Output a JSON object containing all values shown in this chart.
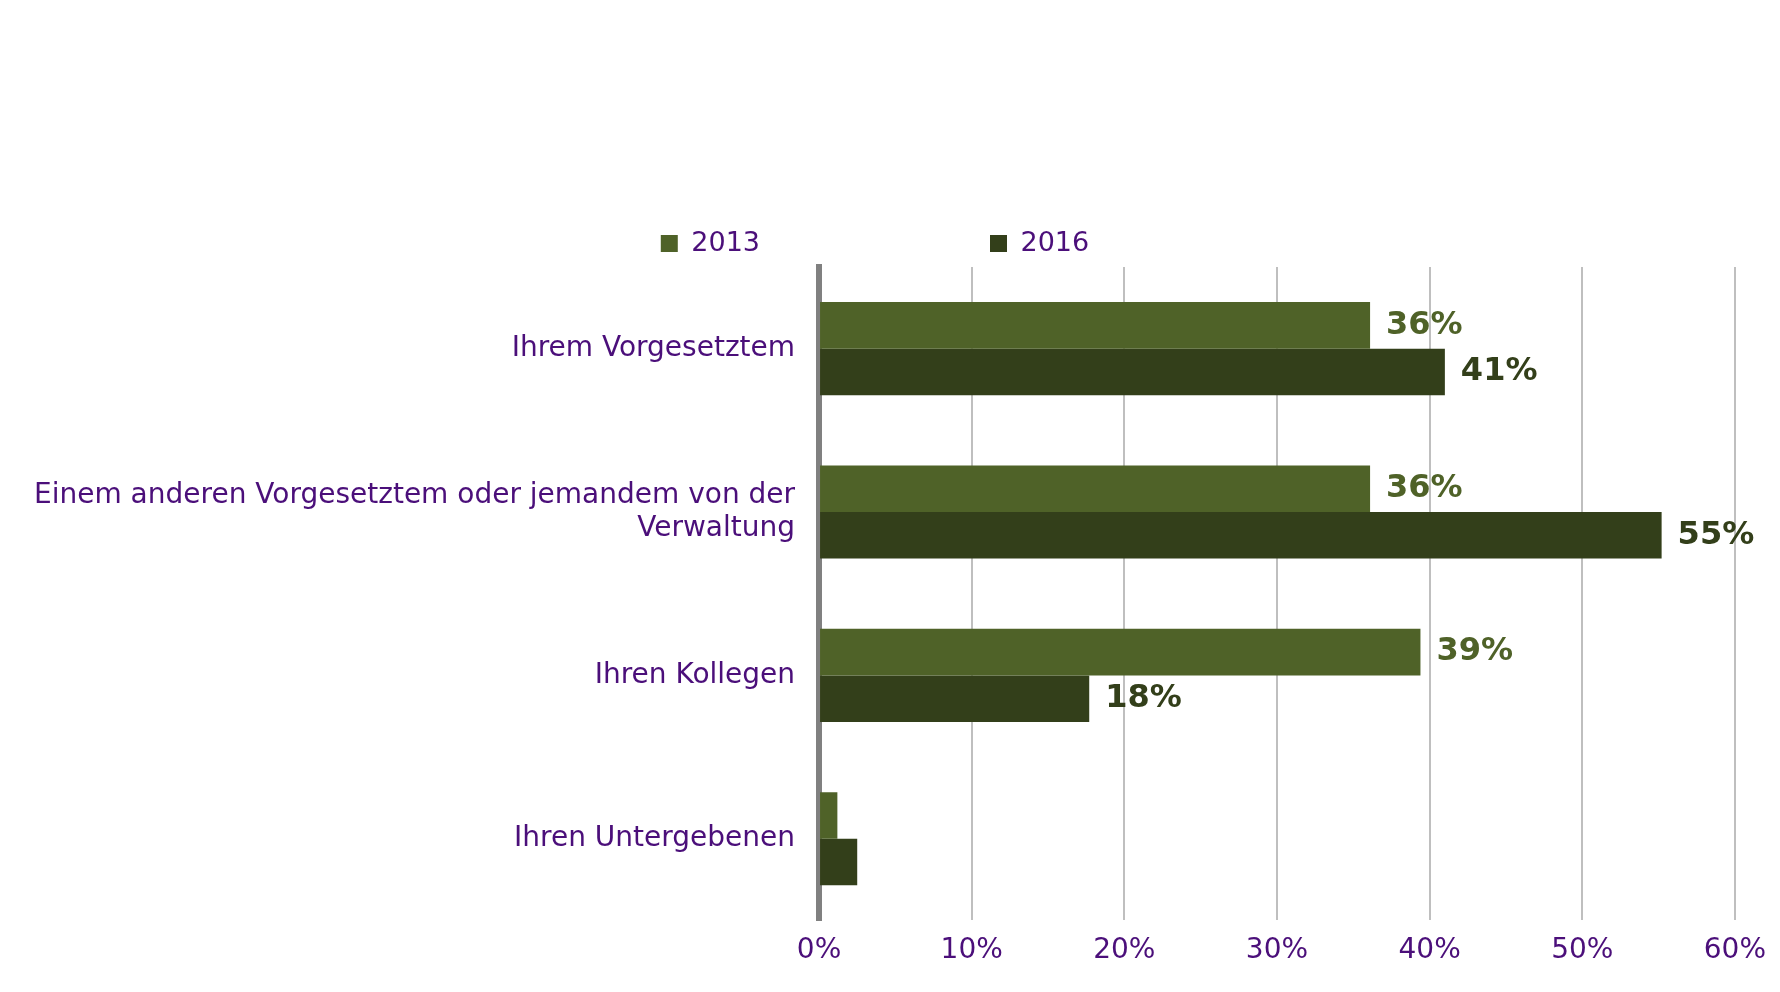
{
  "chart_data": {
    "type": "bar",
    "orientation": "horizontal",
    "categories": [
      "Ihrem Vorgesetztem",
      "Einem anderen Vorgesetztem oder jemandem von der Verwaltung",
      "Ihren Kollegen",
      "Ihren Untergebenen"
    ],
    "series": [
      {
        "name": "2013",
        "color": "#4f6228",
        "values": [
          36.1,
          36.1,
          39.4,
          1.2
        ],
        "value_labels": [
          "36%",
          "36%",
          "39%",
          null
        ]
      },
      {
        "name": "2016",
        "color": "#333f1a",
        "values": [
          41,
          55.2,
          17.7,
          2.5
        ],
        "value_labels": [
          "41%",
          "55%",
          "18%",
          null
        ]
      }
    ],
    "xlim": [
      0,
      60
    ],
    "xticks": [
      {
        "value": 0,
        "label": "0%"
      },
      {
        "value": 10,
        "label": "10%"
      },
      {
        "value": 20,
        "label": "20%"
      },
      {
        "value": 30,
        "label": "30%"
      },
      {
        "value": 40,
        "label": "40%"
      },
      {
        "value": 50,
        "label": "50%"
      },
      {
        "value": 60,
        "label": "60%"
      }
    ],
    "grid": "x",
    "legend": "top"
  }
}
